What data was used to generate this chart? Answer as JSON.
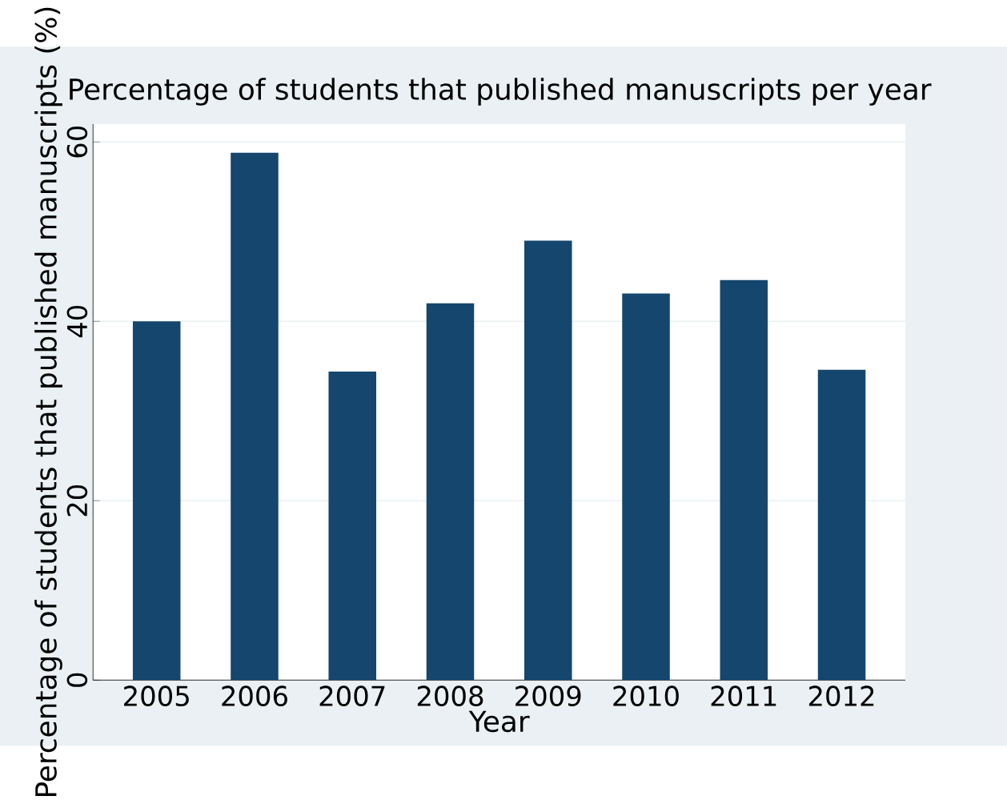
{
  "chart_data": {
    "type": "bar",
    "title": "Percentage of students that published manuscripts per year",
    "xlabel": "Year",
    "ylabel": "Percentage of students that published manuscripts (%)",
    "categories": [
      "2005",
      "2006",
      "2007",
      "2008",
      "2009",
      "2010",
      "2011",
      "2012"
    ],
    "values": [
      40.0,
      58.8,
      34.4,
      42.0,
      49.0,
      43.1,
      44.6,
      34.6
    ],
    "color": "#14466e",
    "ylim": [
      0,
      62
    ],
    "yticks": [
      0,
      20,
      40,
      60
    ],
    "grid": "y"
  }
}
